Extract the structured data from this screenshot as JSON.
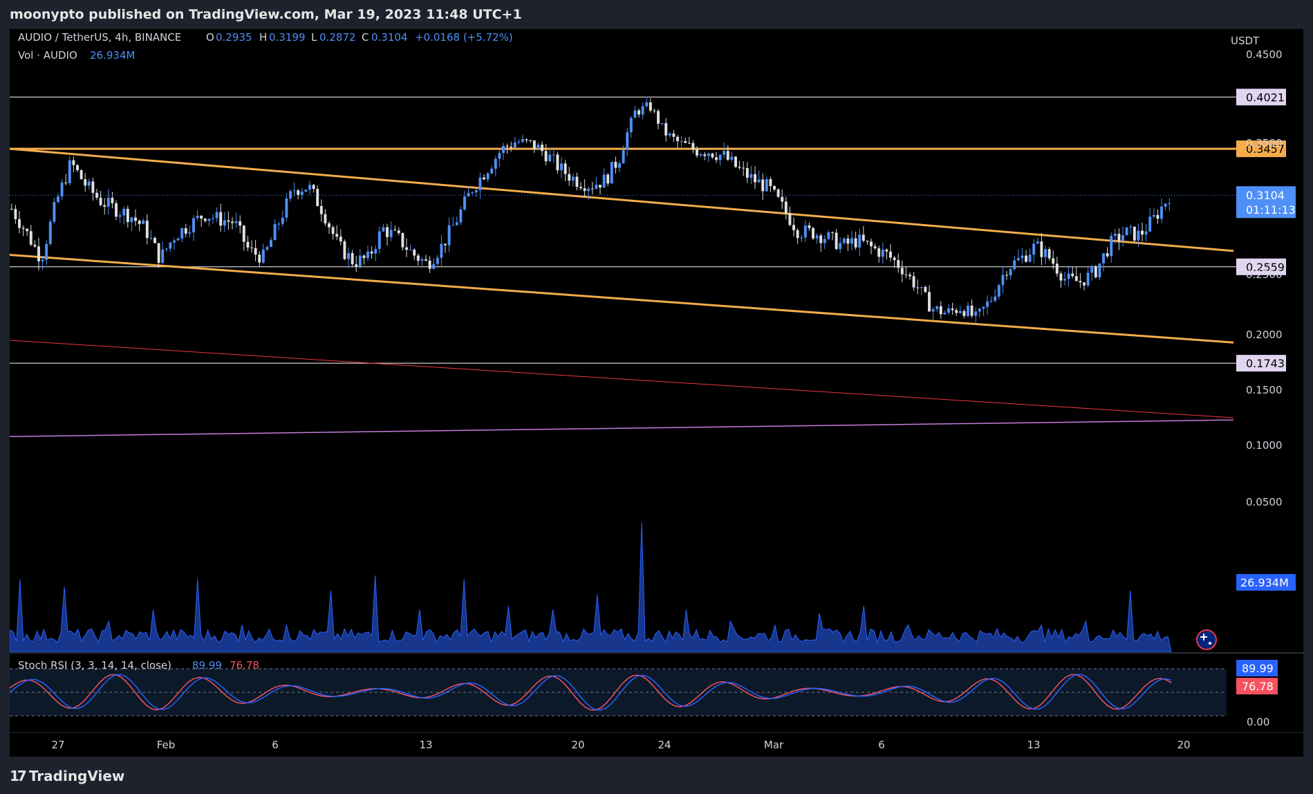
{
  "header": {
    "published": "moonypto published on TradingView.com, Mar 19, 2023 11:48 UTC+1"
  },
  "footer": {
    "brand": "TradingView",
    "logo_glyph": "17"
  },
  "legend": {
    "symbol": "AUDIO / TetherUS, 4h, BINANCE",
    "o_label": "O",
    "o_value": "0.2935",
    "h_label": "H",
    "h_value": "0.3199",
    "l_label": "L",
    "l_value": "0.2872",
    "c_label": "C",
    "c_value": "0.3104",
    "change": "+0.0168 (+5.72%)",
    "vol_label": "Vol · AUDIO",
    "vol_value": "26.934M"
  },
  "stoch": {
    "label": "Stoch RSI (3, 3, 14, 14, close)",
    "k_value": "89.99",
    "d_value": "76.78"
  },
  "colors": {
    "up": "#4f8ff8",
    "down": "#e0e0e0",
    "channel": "#f5ad4c",
    "ema_red": "#f23645",
    "ema_purple": "#c77ddb",
    "volume": "#2962ff",
    "stoch_k": "#2962ff",
    "stoch_d": "#f7525f"
  },
  "chart_data": {
    "type": "candlestick",
    "symbol": "AUDIO / TetherUS",
    "interval": "4h",
    "exchange": "BINANCE",
    "currency": "USDT",
    "x_tick_labels": [
      "27",
      "Feb",
      "6",
      "13",
      "20",
      "24",
      "Mar",
      "6",
      "13",
      "20"
    ],
    "y_tick_labels": [
      "0.4500",
      "0.3500",
      "0.2500",
      "0.2000",
      "0.1500",
      "0.1000",
      "0.0500"
    ],
    "y_range": [
      0.01,
      0.48
    ],
    "horizontal_levels": [
      {
        "value": 0.4021,
        "label": "0.4021",
        "color": "#ffffff",
        "badge_bg": "#e1d5f0",
        "badge_fg": "#000000"
      },
      {
        "value": 0.3457,
        "label": "0.3457",
        "color": "#f5ad4c",
        "badge_bg": "#f5ad4c",
        "badge_fg": "#000000"
      },
      {
        "value": 0.2559,
        "label": "0.2559",
        "color": "#ffffff",
        "badge_bg": "#e1d5f0",
        "badge_fg": "#000000"
      },
      {
        "value": 0.1743,
        "label": "0.1743",
        "color": "#ffffff",
        "badge_bg": "#e1d5f0",
        "badge_fg": "#000000"
      }
    ],
    "last_price": {
      "value": 0.3104,
      "label": "0.3104",
      "countdown": "01:11:13"
    },
    "volume_last": "26.934M",
    "close_path": [
      0.3,
      0.282,
      0.262,
      0.305,
      0.335,
      0.318,
      0.306,
      0.3,
      0.295,
      0.285,
      0.262,
      0.28,
      0.288,
      0.296,
      0.292,
      0.29,
      0.268,
      0.263,
      0.29,
      0.315,
      0.317,
      0.298,
      0.272,
      0.26,
      0.262,
      0.285,
      0.278,
      0.266,
      0.258,
      0.272,
      0.292,
      0.315,
      0.33,
      0.345,
      0.352,
      0.35,
      0.342,
      0.33,
      0.322,
      0.318,
      0.322,
      0.34,
      0.385,
      0.392,
      0.362,
      0.35,
      0.345,
      0.344,
      0.34,
      0.33,
      0.322,
      0.316,
      0.3,
      0.283,
      0.282,
      0.278,
      0.272,
      0.276,
      0.27,
      0.265,
      0.255,
      0.24,
      0.222,
      0.218,
      0.223,
      0.213,
      0.23,
      0.255,
      0.262,
      0.272,
      0.262,
      0.246,
      0.244,
      0.252,
      0.273,
      0.282,
      0.28,
      0.293,
      0.31
    ],
    "channel_upper": {
      "from": 0.3457,
      "to": 0.268
    },
    "channel_lower": {
      "from": 0.265,
      "to": 0.193
    },
    "channel_upper_flat": 0.3457,
    "ema_red": {
      "from": 0.195,
      "to": 0.125
    },
    "ema_purple": {
      "from": 0.108,
      "to": 0.123
    },
    "volume_spikes": [
      0.95,
      0.85,
      0.4,
      0.55,
      0.95,
      0.35,
      0.8,
      1.0,
      0.55,
      0.95,
      0.6,
      0.55,
      0.75,
      1.7,
      0.55,
      0.4,
      0.35,
      0.5,
      0.6,
      0.35,
      0.25,
      0.3,
      0.35,
      0.4,
      0.8
    ],
    "stoch_ticks": [
      "0.00"
    ]
  }
}
